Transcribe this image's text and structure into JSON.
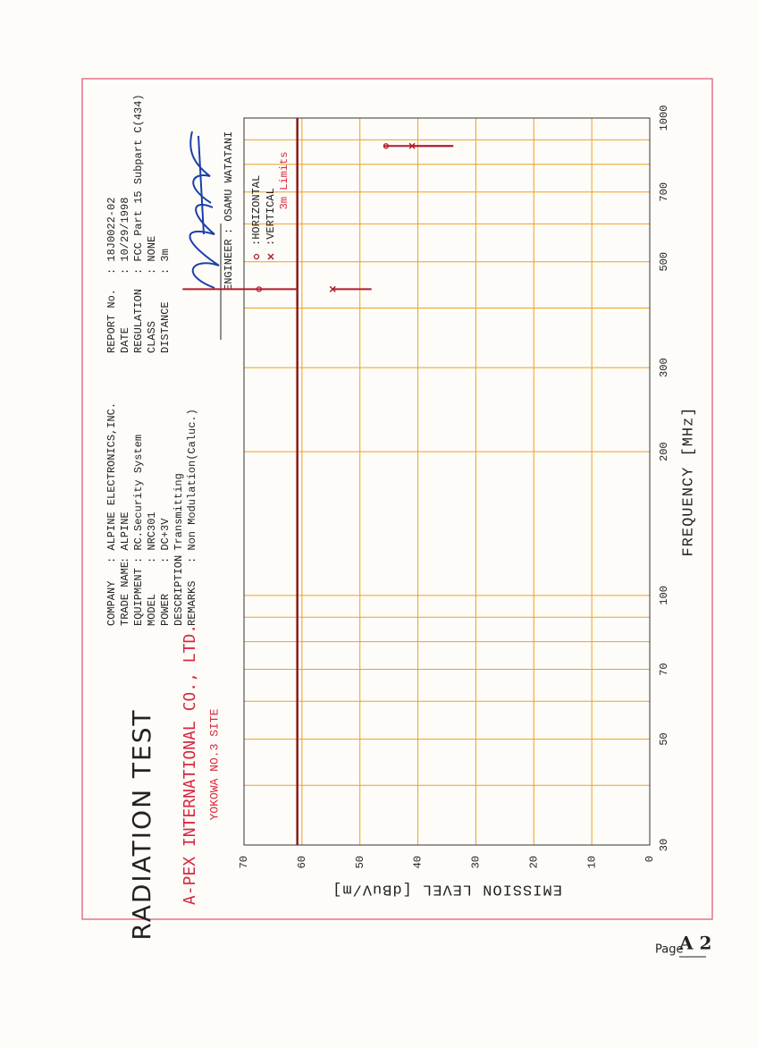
{
  "header": {
    "title": "RADIATION TEST",
    "company": "A-PEX INTERNATIONAL CO., LTD.",
    "site": "YOKOWA NO.3 SITE"
  },
  "info": {
    "labels": [
      "COMPANY",
      "TRADE NAME",
      "EQUIPMENT",
      "MODEL",
      "POWER",
      "DESCRIPTION",
      "REMARKS"
    ],
    "values": [
      ": ALPINE ELECTRONICS,INC.",
      ": ALPINE",
      ": RC.Security System",
      ": NRC301",
      ": DC+3V",
      ": Transmitting",
      ": Non Modulation(Caluc.)"
    ]
  },
  "report": {
    "labels": [
      "REPORT No.",
      "DATE",
      "REGULATION",
      "CLASS",
      "DISTANCE"
    ],
    "values": [
      ": 18J0022-02",
      ": 10/29/1998",
      ": FCC Part 15 Subpart C(434)",
      ": NONE",
      ":  3m"
    ],
    "engineer_label": "ENGINEER",
    "engineer": ": OSAMU WATATANI"
  },
  "footer": {
    "prefix": "Page",
    "page": "A 2"
  },
  "chart_data": {
    "type": "scatter",
    "x_label": "FREQUENCY [MHz]",
    "y_label": "EMISSION LEVEL [dBuV/m]",
    "x": [
      438,
      874
    ],
    "log_x": true,
    "grid": true,
    "grid_color": "#f0a020",
    "xlim": [
      30,
      1000
    ],
    "xticks": [
      30,
      50,
      70,
      100,
      200,
      300,
      500,
      700,
      1000
    ],
    "minor_xticks": [
      40,
      60,
      80,
      90,
      400,
      600,
      800,
      900
    ],
    "ylim": [
      0,
      70
    ],
    "yticks": [
      0,
      10,
      20,
      30,
      40,
      50,
      60,
      70
    ],
    "limit": {
      "label": "3m Limits",
      "value": 60.8,
      "color": "#8b1a1a"
    },
    "series": [
      {
        "name": ":HORIZONTAL",
        "marker": "o",
        "color": "#b01c2c",
        "values": [
          67.4,
          45.5
        ],
        "ranges": [
          [
            60.8,
            80.6
          ],
          [
            33.9,
            45.8
          ]
        ]
      },
      {
        "name": ":VERTICAL",
        "marker": "x",
        "color": "#b01c2c",
        "values": [
          54.7,
          41.0
        ],
        "ranges": [
          [
            48.0,
            54.7
          ],
          [
            33.9,
            41.0
          ]
        ]
      }
    ]
  }
}
